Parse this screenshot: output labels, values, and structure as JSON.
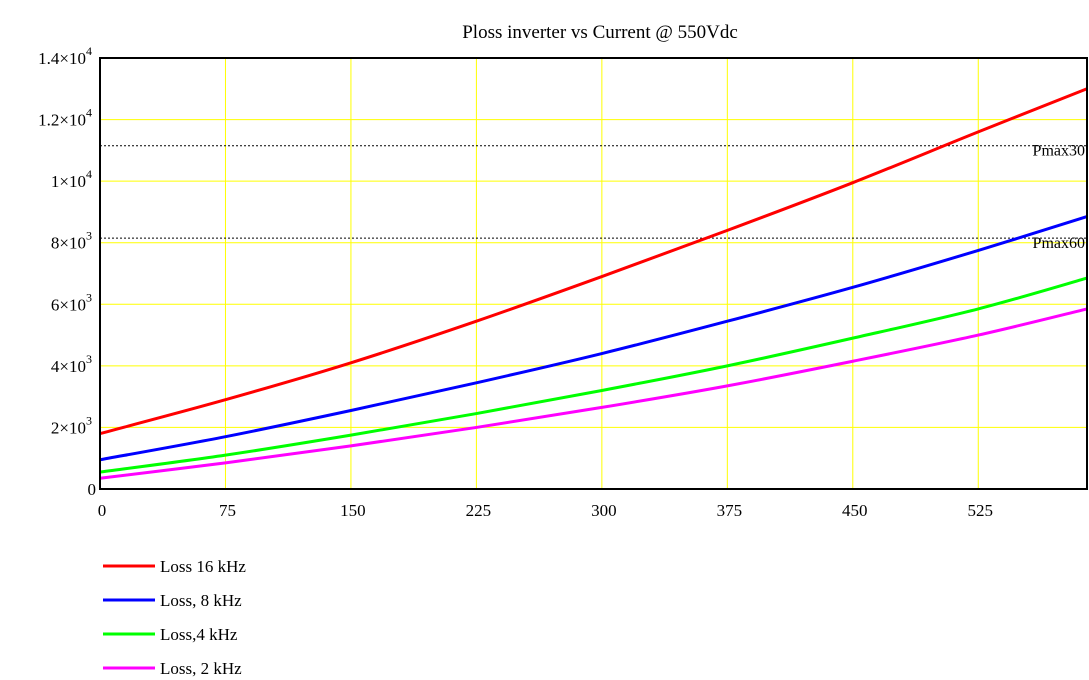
{
  "chart_data": {
    "type": "line",
    "title": "Ploss inverter vs Current @ 550Vdc",
    "xlabel": "",
    "ylabel": "",
    "xlim": [
      0,
      590
    ],
    "ylim": [
      0,
      14000
    ],
    "grid": true,
    "grid_color": "#ffff00",
    "x_ticks": [
      {
        "value": 0,
        "label": "0"
      },
      {
        "value": 75,
        "label": "75"
      },
      {
        "value": 150,
        "label": "150"
      },
      {
        "value": 225,
        "label": "225"
      },
      {
        "value": 300,
        "label": "300"
      },
      {
        "value": 375,
        "label": "375"
      },
      {
        "value": 450,
        "label": "450"
      },
      {
        "value": 525,
        "label": "525"
      }
    ],
    "y_ticks": [
      {
        "value": 0,
        "mantissa": "0",
        "exp": ""
      },
      {
        "value": 2000,
        "mantissa": "2×10",
        "exp": "3"
      },
      {
        "value": 4000,
        "mantissa": "4×10",
        "exp": "3"
      },
      {
        "value": 6000,
        "mantissa": "6×10",
        "exp": "3"
      },
      {
        "value": 8000,
        "mantissa": "8×10",
        "exp": "3"
      },
      {
        "value": 10000,
        "mantissa": "1×10",
        "exp": "4"
      },
      {
        "value": 12000,
        "mantissa": "1.2×10",
        "exp": "4"
      },
      {
        "value": 14000,
        "mantissa": "1.4×10",
        "exp": "4"
      }
    ],
    "x": [
      0,
      75,
      150,
      225,
      300,
      375,
      450,
      525,
      590
    ],
    "series": [
      {
        "name": "Loss 16 kHz",
        "color": "#ff0000",
        "values": [
          1800,
          2900,
          4100,
          5450,
          6900,
          8400,
          9950,
          11600,
          13000
        ]
      },
      {
        "name": "Loss, 8 kHz",
        "color": "#0000ff",
        "values": [
          950,
          1700,
          2550,
          3450,
          4400,
          5450,
          6550,
          7750,
          8850
        ]
      },
      {
        "name": "Loss,4 kHz",
        "color": "#00ff00",
        "values": [
          550,
          1100,
          1750,
          2450,
          3200,
          4000,
          4900,
          5850,
          6850
        ]
      },
      {
        "name": "Loss, 2 kHz",
        "color": "#ff00ff",
        "values": [
          350,
          850,
          1400,
          2000,
          2650,
          3350,
          4150,
          5000,
          5850
        ]
      }
    ],
    "reference_lines": [
      {
        "label": "Pmax30",
        "value": 11150
      },
      {
        "label": "Pmax60",
        "value": 8150
      }
    ],
    "legend_position": "bottom-left"
  }
}
